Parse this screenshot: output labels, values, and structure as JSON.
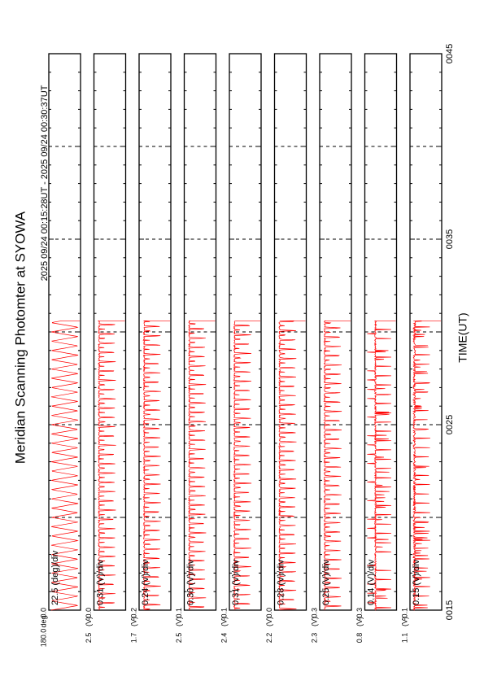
{
  "chart_data": {
    "type": "line",
    "title": "Meridian Scanning Photomter at SYOWA",
    "time_range": "2025 09/24 00:15:28UT - 2025 09/24 00:30:37UT",
    "xlabel": "TIME(UT)",
    "x_ticks": [
      "0015",
      "0025",
      "0035",
      "0045"
    ],
    "xlim_minutes": [
      15,
      45
    ],
    "data_end_minute": 30.6,
    "line_color": "#ff0000",
    "panels": [
      {
        "scale": "22.5 (deg)/div",
        "top_label": "180.0",
        "unit_label": "deg",
        "bottom_label": "0.0",
        "ylim": [
          0,
          180
        ],
        "signal": "scan",
        "shift": 0.0
      },
      {
        "scale": "0.31 (V)/div",
        "top_label": "2.5",
        "unit_label": "(V)",
        "bottom_label": "-0.0",
        "ylim": [
          -0.0,
          2.5
        ],
        "signal": "photometer",
        "shift": 0.1
      },
      {
        "scale": "0.24 (V)/div",
        "top_label": "1.7",
        "unit_label": "(V)",
        "bottom_label": "-0.2",
        "ylim": [
          -0.2,
          1.7
        ],
        "signal": "photometer",
        "shift": 0.3
      },
      {
        "scale": "0.30 (V)/div",
        "top_label": "2.5",
        "unit_label": "(V)",
        "bottom_label": "0.1",
        "ylim": [
          0.1,
          2.5
        ],
        "signal": "photometer",
        "shift": 0.55
      },
      {
        "scale": "0.31 (V)/div",
        "top_label": "2.4",
        "unit_label": "(V)",
        "bottom_label": "-0.1",
        "ylim": [
          -0.1,
          2.4
        ],
        "signal": "photometer",
        "shift": 0.2
      },
      {
        "scale": "0.28 (V)/div",
        "top_label": "2.2",
        "unit_label": "(V)",
        "bottom_label": "0.0",
        "ylim": [
          0.0,
          2.2
        ],
        "signal": "photometer",
        "shift": 0.75
      },
      {
        "scale": "0.25 (V)/div",
        "top_label": "2.3",
        "unit_label": "(V)",
        "bottom_label": "0.3",
        "ylim": [
          0.3,
          2.3
        ],
        "signal": "photometer",
        "shift": 0.45
      },
      {
        "scale": "0.14 (V)/div",
        "top_label": "0.8",
        "unit_label": "(V)",
        "bottom_label": "-0.3",
        "ylim": [
          -0.3,
          0.8
        ],
        "signal": "spiky",
        "shift": 0.6
      },
      {
        "scale": "0.15 (V)/div",
        "top_label": "1.1",
        "unit_label": "(V)",
        "bottom_label": "-0.1",
        "ylim": [
          -0.1,
          1.1
        ],
        "signal": "noisy",
        "shift": 0.35
      }
    ]
  }
}
